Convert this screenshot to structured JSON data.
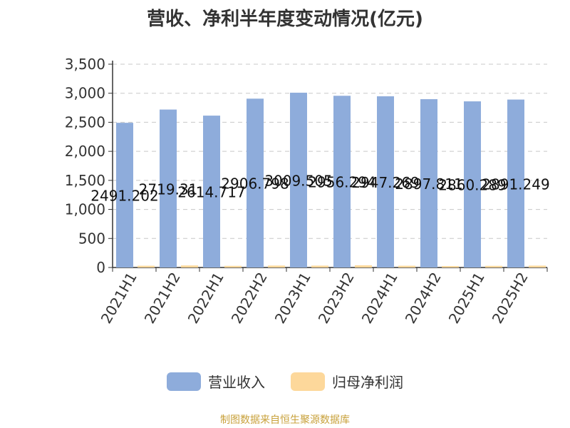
{
  "chart_data": {
    "type": "bar",
    "title": "营收、净利半年度变动情况(亿元)",
    "categories": [
      "2021H1",
      "2021H2",
      "2022H1",
      "2022H2",
      "2023H1",
      "2023H2",
      "2024H1",
      "2024H2",
      "2025H1",
      "2025H2"
    ],
    "series": [
      {
        "name": "营业收入",
        "color": "#8eacdb",
        "values": [
          2491.202,
          2719.31,
          2614.717,
          2906.798,
          3009.505,
          2956.294,
          2947.269,
          2897.811,
          2860.289,
          2891.249
        ],
        "labels": [
          "2491.202",
          "2719.31",
          "2614.717",
          "2906.798",
          "3009.505",
          "2956.294",
          "2947.269",
          "2897.811",
          "2860.289",
          "2891.249"
        ]
      },
      {
        "name": "归母净利润",
        "color": "#fdd89b",
        "values": [
          30,
          35,
          28,
          33,
          32,
          38,
          30,
          25,
          28,
          32
        ]
      }
    ],
    "ylim": [
      0,
      3500
    ],
    "yticks": [
      0,
      500,
      1000,
      1500,
      2000,
      2500,
      3000,
      3500
    ],
    "ytick_labels": [
      "0",
      "500",
      "1,000",
      "1,500",
      "2,000",
      "2,500",
      "3,000",
      "3,500"
    ],
    "grid": true,
    "legend_position": "bottom"
  },
  "source_text": "制图数据来自恒生聚源数据库",
  "source_color": "#c8a13b"
}
